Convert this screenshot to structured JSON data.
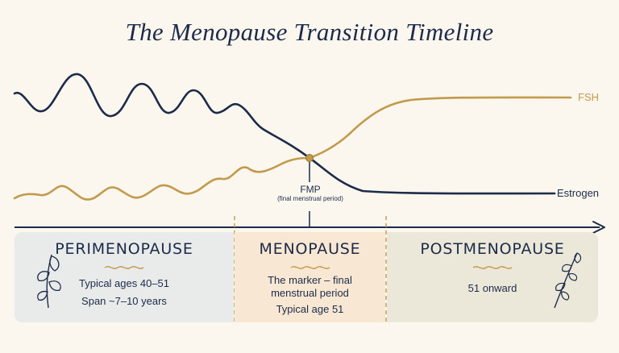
{
  "title": "The Menopause Transition Timeline",
  "lines": {
    "fsh": "FSH",
    "estrogen": "Estrogen"
  },
  "marker": {
    "label": "FMP",
    "sublabel": "(final menstrual period)"
  },
  "phases": [
    {
      "name": "PERIMENOPAUSE",
      "line1": "Typical ages 40–51",
      "line2": "Span ~7–10 years"
    },
    {
      "name": "MENOPAUSE",
      "line1": "The marker – final",
      "line2": "menstrual period",
      "line3": "Typical age 51"
    },
    {
      "name": "POSTMENOPAUSE",
      "line1": "51 onward"
    }
  ],
  "colors": {
    "navy": "#1d2b4a",
    "gold": "#c29a4c",
    "peri_bg": "#e9ebea",
    "meno_bg": "#f8e7d2",
    "post_bg": "#ebe7d9"
  },
  "icons": [
    "leaf-sprig-left-icon",
    "leaf-sprig-right-icon"
  ]
}
